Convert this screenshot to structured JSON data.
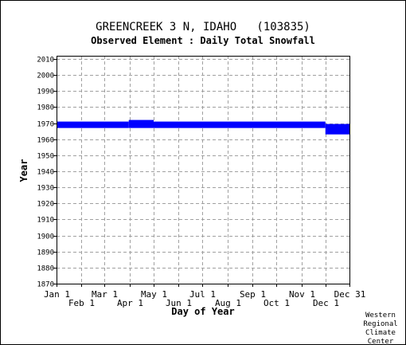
{
  "header": {
    "title": "GREENCREEK 3 N, IDAHO   (103835)",
    "subtitle": "Observed Element : Daily Total Snowfall"
  },
  "credit": [
    "Western",
    "Regional",
    "Climate",
    "Center"
  ],
  "colors": {
    "fill": "#0000ff",
    "grid": "#a0a0a0",
    "axis": "#000000"
  },
  "chart_data": {
    "type": "bar",
    "title": "GREENCREEK 3 N, IDAHO   (103835)",
    "subtitle": "Observed Element : Daily Total Snowfall",
    "xlabel": "Day of Year",
    "ylabel": "Year",
    "xlim": [
      1,
      366
    ],
    "ylim": [
      1870,
      2012
    ],
    "grid": true,
    "x_ticks": [
      {
        "label": "Jan 1",
        "day": 1,
        "row": 0
      },
      {
        "label": "Feb 1",
        "day": 32,
        "row": 1
      },
      {
        "label": "Mar 1",
        "day": 61,
        "row": 0
      },
      {
        "label": "Apr 1",
        "day": 92,
        "row": 1
      },
      {
        "label": "May 1",
        "day": 122,
        "row": 0
      },
      {
        "label": "Jun 1",
        "day": 153,
        "row": 1
      },
      {
        "label": "Jul 1",
        "day": 183,
        "row": 0
      },
      {
        "label": "Aug 1",
        "day": 214,
        "row": 1
      },
      {
        "label": "Sep 1",
        "day": 245,
        "row": 0
      },
      {
        "label": "Oct 1",
        "day": 275,
        "row": 1
      },
      {
        "label": "Nov 1",
        "day": 306,
        "row": 0
      },
      {
        "label": "Dec 1",
        "day": 336,
        "row": 1
      },
      {
        "label": "Dec 31",
        "day": 366,
        "row": 0
      }
    ],
    "y_ticks": [
      1870,
      1880,
      1890,
      1900,
      1910,
      1920,
      1930,
      1940,
      1950,
      1960,
      1970,
      1980,
      1990,
      2000,
      2010
    ],
    "period_of_record": [
      {
        "start_day": 1,
        "end_day": 60,
        "start_year": 1967.0,
        "end_year": 1971.0
      },
      {
        "start_day": 61,
        "end_day": 90,
        "start_year": 1967.0,
        "end_year": 1971.0
      },
      {
        "start_day": 91,
        "end_day": 121,
        "start_year": 1967.0,
        "end_year": 1972.0
      },
      {
        "start_day": 122,
        "end_day": 335,
        "start_year": 1967.0,
        "end_year": 1971.0
      },
      {
        "start_day": 336,
        "end_day": 366,
        "start_year": 1963.0,
        "end_year": 1969.5
      }
    ]
  }
}
